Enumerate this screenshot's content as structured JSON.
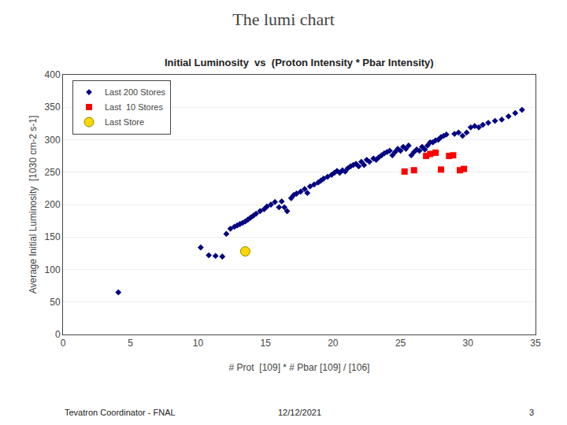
{
  "chart_data": {
    "type": "scatter",
    "title": "The lumi chart",
    "subtitle": "Initial Luminosity  vs  (Proton Intensity * Pbar Intensity)",
    "xlabel": "# Prot  [109] * # Pbar [109] / [106]",
    "ylabel": "Average Initial Luminosity  [1030 cm-2 s-1]",
    "annotations": [
      {
        "text": "Tevatron Coordinator - FNAL"
      },
      {
        "text": "12/12/2021"
      },
      {
        "text": "3"
      }
    ],
    "xlim": [
      0,
      35
    ],
    "ylim": [
      0,
      400
    ],
    "xticks": [
      0,
      5,
      10,
      15,
      20,
      25,
      30,
      35
    ],
    "yticks": [
      0,
      50,
      100,
      150,
      200,
      250,
      300,
      350,
      400
    ],
    "grid": "y",
    "legend": "upper left",
    "series": [
      {
        "name": "Last 200 Stores",
        "color": "#000080",
        "marker": "diamond",
        "x": [
          4.1,
          10.2,
          10.8,
          11.3,
          11.8,
          12.1,
          12.4,
          12.7,
          12.9,
          13.1,
          13.3,
          13.5,
          13.7,
          13.9,
          14.1,
          14.3,
          14.6,
          14.9,
          15.1,
          15.4,
          15.7,
          16.0,
          16.2,
          16.4,
          16.6,
          16.9,
          17.1,
          17.3,
          17.6,
          17.9,
          18.1,
          18.3,
          18.6,
          18.9,
          19.1,
          19.3,
          19.6,
          19.9,
          20.1,
          20.3,
          20.5,
          20.7,
          20.9,
          21.1,
          21.3,
          21.5,
          21.7,
          21.9,
          22.1,
          22.3,
          22.5,
          22.7,
          23.0,
          23.2,
          23.4,
          23.6,
          23.8,
          24.0,
          24.2,
          24.4,
          24.6,
          24.8,
          25.0,
          25.2,
          25.4,
          25.6,
          25.8,
          26.0,
          26.2,
          26.4,
          26.6,
          26.8,
          27.0,
          27.2,
          27.4,
          27.6,
          27.8,
          28.0,
          28.2,
          28.4,
          29.0,
          29.3,
          29.6,
          29.9,
          30.2,
          30.5,
          30.8,
          31.1,
          31.5,
          32.0,
          32.5,
          33.0,
          33.5,
          34.0
        ],
        "values": [
          65,
          134,
          122,
          121,
          120,
          155,
          163,
          166,
          168,
          170,
          172,
          174,
          177,
          180,
          183,
          186,
          190,
          193,
          197,
          200,
          204,
          196,
          205,
          196,
          190,
          210,
          215,
          217,
          220,
          224,
          218,
          228,
          231,
          234,
          237,
          240,
          243,
          246,
          249,
          252,
          249,
          253,
          251,
          256,
          259,
          261,
          263,
          259,
          266,
          261,
          269,
          266,
          271,
          269,
          273,
          276,
          279,
          281,
          283,
          276,
          281,
          286,
          283,
          289,
          286,
          291,
          276,
          281,
          285,
          283,
          289,
          285,
          291,
          296,
          296,
          299,
          300,
          304,
          306,
          308,
          309,
          311,
          306,
          311,
          319,
          321,
          319,
          323,
          326,
          329,
          331,
          336,
          341,
          346
        ]
      },
      {
        "name": "Last  10 Stores",
        "color": "#FF0000",
        "marker": "square",
        "x": [
          25.3,
          26.0,
          26.9,
          27.2,
          27.6,
          28.0,
          28.6,
          28.9,
          29.4,
          29.7
        ],
        "values": [
          251,
          253,
          275,
          278,
          280,
          254,
          275,
          276,
          253,
          255
        ]
      },
      {
        "name": "Last Store",
        "color": "#FFD700",
        "marker": "circle",
        "x": [
          13.5
        ],
        "values": [
          128
        ]
      }
    ]
  }
}
